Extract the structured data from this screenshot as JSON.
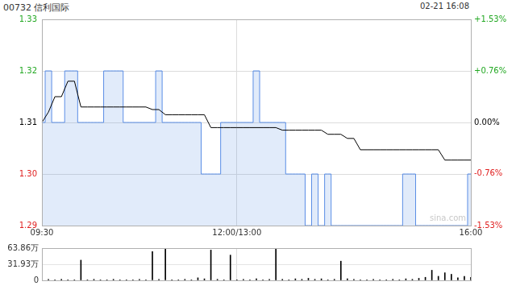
{
  "chart_data": [
    {
      "type": "line",
      "title": "00732 信利国际",
      "subtitle": "02-21 16:08",
      "annotations": [
        "sina.com"
      ],
      "categories": [
        "09:30",
        null,
        null,
        null,
        null,
        null,
        null,
        null,
        null,
        null,
        null,
        null,
        null,
        null,
        null,
        null,
        null,
        null,
        null,
        null,
        null,
        null,
        null,
        null,
        null,
        null,
        null,
        null,
        null,
        null,
        "12:00/13:00",
        null,
        null,
        null,
        null,
        null,
        null,
        null,
        null,
        null,
        null,
        null,
        null,
        null,
        null,
        null,
        null,
        null,
        null,
        null,
        null,
        null,
        null,
        null,
        null,
        null,
        null,
        null,
        null,
        null,
        null,
        null,
        null,
        null,
        null,
        null,
        "16:00"
      ],
      "series": [
        {
          "color": "#5b8ee6",
          "values": [
            1.31,
            1.32,
            1.31,
            1.31,
            1.32,
            1.32,
            1.31,
            1.31,
            1.31,
            1.31,
            1.32,
            1.32,
            1.32,
            1.31,
            1.31,
            1.31,
            1.31,
            1.31,
            1.32,
            1.31,
            1.31,
            1.31,
            1.31,
            1.31,
            1.31,
            1.3,
            1.3,
            1.3,
            1.31,
            1.31,
            1.31,
            1.31,
            1.31,
            1.32,
            1.31,
            1.31,
            1.31,
            1.31,
            1.3,
            1.3,
            1.3,
            1.29,
            1.3,
            1.29,
            1.3,
            1.29,
            1.29,
            1.29,
            1.29,
            1.29,
            1.29,
            1.29,
            1.29,
            1.29,
            1.29,
            1.29,
            1.3,
            1.3,
            1.29,
            1.29,
            1.29,
            1.29,
            1.29,
            1.29,
            1.29,
            1.29,
            1.3
          ]
        },
        {
          "color": "#000000",
          "values": [
            1.31,
            1.312,
            1.315,
            1.315,
            1.318,
            1.318,
            1.313,
            1.313,
            1.313,
            1.313,
            1.313,
            1.313,
            1.313,
            1.313,
            1.313,
            1.313,
            1.313,
            1.3125,
            1.3125,
            1.3115,
            1.3115,
            1.3115,
            1.3115,
            1.3115,
            1.3115,
            1.3115,
            1.309,
            1.309,
            1.309,
            1.309,
            1.309,
            1.309,
            1.309,
            1.309,
            1.309,
            1.309,
            1.309,
            1.3085,
            1.3085,
            1.3085,
            1.3085,
            1.3085,
            1.3085,
            1.3085,
            1.3077,
            1.3077,
            1.3077,
            1.3069,
            1.3069,
            1.3047,
            1.3047,
            1.3047,
            1.3047,
            1.3047,
            1.3047,
            1.3047,
            1.3047,
            1.3047,
            1.3047,
            1.3047,
            1.3047,
            1.3047,
            1.3027,
            1.3027,
            1.3027,
            1.3027,
            1.3027
          ]
        }
      ],
      "ylim": [
        1.29,
        1.33
      ],
      "yticks": [
        1.29,
        {
          "value": 1.3,
          "label": "1.30"
        },
        1.31,
        1.32,
        1.33
      ],
      "y2lim": [
        -1.53,
        1.53
      ],
      "y2ticks": [
        {
          "value": -1.53,
          "label": "-1.53%"
        },
        {
          "value": -0.76,
          "label": "-0.76%"
        },
        {
          "value": 0,
          "label": "0.00%"
        },
        {
          "value": 0.76,
          "label": "+0.76%"
        },
        {
          "value": 1.53,
          "label": "+1.53%"
        }
      ],
      "grid": true
    },
    {
      "type": "bar",
      "categories": [
        "09:30",
        null,
        null,
        null,
        null,
        null,
        null,
        null,
        null,
        null,
        null,
        null,
        null,
        null,
        null,
        null,
        null,
        null,
        null,
        null,
        null,
        null,
        null,
        null,
        null,
        null,
        null,
        null,
        null,
        null,
        "12:00/13:00",
        null,
        null,
        null,
        null,
        null,
        null,
        null,
        null,
        null,
        null,
        null,
        null,
        null,
        null,
        null,
        null,
        null,
        null,
        null,
        null,
        null,
        null,
        null,
        null,
        null,
        null,
        null,
        null,
        null,
        null,
        null,
        null,
        null,
        null,
        null,
        "16:00"
      ],
      "values": [
        3,
        2,
        1,
        2,
        1,
        1,
        40,
        1,
        2,
        1,
        1,
        2,
        1,
        1,
        1,
        2,
        1,
        57,
        2,
        63,
        1,
        1,
        2,
        1,
        5,
        3,
        60,
        2,
        1,
        50,
        1,
        2,
        1,
        3,
        1,
        2,
        63.5,
        2,
        1,
        3,
        2,
        4,
        2,
        3,
        1,
        2,
        38,
        3,
        2,
        1,
        1,
        2,
        1,
        1,
        2,
        1,
        3,
        2,
        4,
        6,
        20,
        8,
        15,
        12,
        5,
        8,
        6
      ],
      "color": "#000000",
      "ylim": [
        0,
        63.86
      ],
      "yticks": [
        0,
        {
          "value": 31.93,
          "label": "31.93万"
        },
        {
          "value": 63.86,
          "label": "63.86万"
        }
      ],
      "tick_labels": "y",
      "grid": true
    }
  ]
}
